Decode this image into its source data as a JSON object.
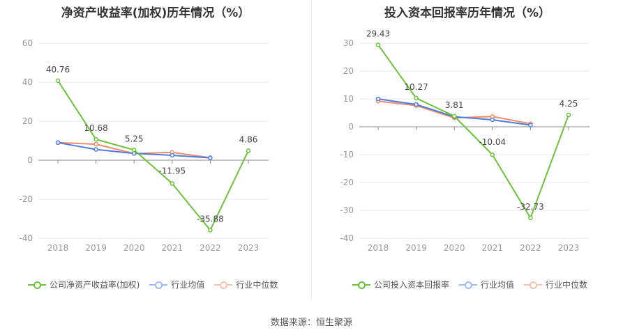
{
  "source": "数据来源：恒生聚源",
  "colors": {
    "company": "#6cc33a",
    "avg": "#4e7bdf",
    "median": "#f08c68",
    "axis": "#999999",
    "grid": "#e9e9e9",
    "label": "#444444"
  },
  "chart_data": [
    {
      "type": "line",
      "title": "净资产收益率(加权)历年情况（%）",
      "categories": [
        "2018",
        "2019",
        "2020",
        "2021",
        "2022",
        "2023"
      ],
      "ylim": [
        -40,
        60
      ],
      "yticks": [
        "60",
        "40",
        "20",
        "0",
        "-20",
        "-40"
      ],
      "grid": true,
      "legend_position": "bottom",
      "series": [
        {
          "name": "公司净资产收益率(加权)",
          "values": [
            40.76,
            10.68,
            5.25,
            -11.95,
            -35.88,
            4.86
          ],
          "labels": [
            "40.76",
            "10.68",
            "5.25",
            "-11.95",
            "-35.88",
            "4.86"
          ],
          "color": "#6cc33a"
        },
        {
          "name": "行业均值",
          "values": [
            9,
            5.5,
            3.5,
            2.5,
            1.2,
            null
          ],
          "color": "#4e7bdf"
        },
        {
          "name": "行业中位数",
          "values": [
            9,
            8.2,
            3.4,
            4,
            1.3,
            null
          ],
          "color": "#f08c68"
        }
      ]
    },
    {
      "type": "line",
      "title": "投入资本回报率历年情况（%）",
      "categories": [
        "2018",
        "2019",
        "2020",
        "2021",
        "2022",
        "2023"
      ],
      "ylim": [
        -40,
        30
      ],
      "yticks": [
        "30",
        "20",
        "10",
        "0",
        "-10",
        "-20",
        "-30",
        "-40"
      ],
      "grid": true,
      "legend_position": "bottom",
      "series": [
        {
          "name": "公司投入资本回报率",
          "values": [
            29.43,
            10.27,
            3.81,
            -10.04,
            -32.73,
            4.25
          ],
          "labels": [
            "29.43",
            "10.27",
            "3.81",
            "-10.04",
            "-32.73",
            "4.25"
          ],
          "color": "#6cc33a"
        },
        {
          "name": "行业均值",
          "values": [
            10,
            8,
            3.6,
            2.5,
            0.6,
            null
          ],
          "color": "#4e7bdf"
        },
        {
          "name": "行业中位数",
          "values": [
            9.2,
            7.6,
            3.2,
            3.7,
            1.1,
            null
          ],
          "color": "#f08c68"
        }
      ]
    }
  ]
}
